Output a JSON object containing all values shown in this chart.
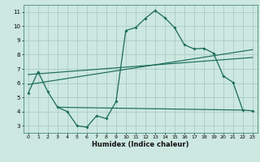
{
  "xlabel": "Humidex (Indice chaleur)",
  "background_color": "#cce8e0",
  "grid_color": "#aaccC4",
  "line_color": "#1a6b5a",
  "xlim": [
    -0.5,
    23.5
  ],
  "ylim": [
    2.5,
    11.5
  ],
  "xticks": [
    0,
    1,
    2,
    3,
    4,
    5,
    6,
    7,
    8,
    9,
    10,
    11,
    12,
    13,
    14,
    15,
    16,
    17,
    18,
    19,
    20,
    21,
    22,
    23
  ],
  "yticks": [
    3,
    4,
    5,
    6,
    7,
    8,
    9,
    10,
    11
  ],
  "curve1_x": [
    0,
    1,
    2,
    3,
    4,
    5,
    6,
    7,
    8,
    9,
    10,
    11,
    12,
    13,
    14,
    15,
    16,
    17,
    18,
    19,
    20,
    21,
    22,
    23
  ],
  "curve1_y": [
    5.3,
    6.8,
    5.4,
    4.3,
    4.0,
    3.0,
    2.9,
    3.7,
    3.5,
    4.7,
    9.7,
    9.9,
    10.55,
    11.1,
    10.6,
    9.9,
    8.7,
    8.4,
    8.45,
    8.1,
    6.5,
    6.05,
    4.1,
    4.05
  ],
  "line1_x": [
    0,
    23
  ],
  "line1_y": [
    5.9,
    8.35
  ],
  "line2_x": [
    0,
    23
  ],
  "line2_y": [
    6.6,
    7.8
  ],
  "hline_x": [
    3,
    22
  ],
  "hline_y": [
    4.3,
    4.1
  ],
  "tick_fontsize": 4.5,
  "xlabel_fontsize": 6.0
}
